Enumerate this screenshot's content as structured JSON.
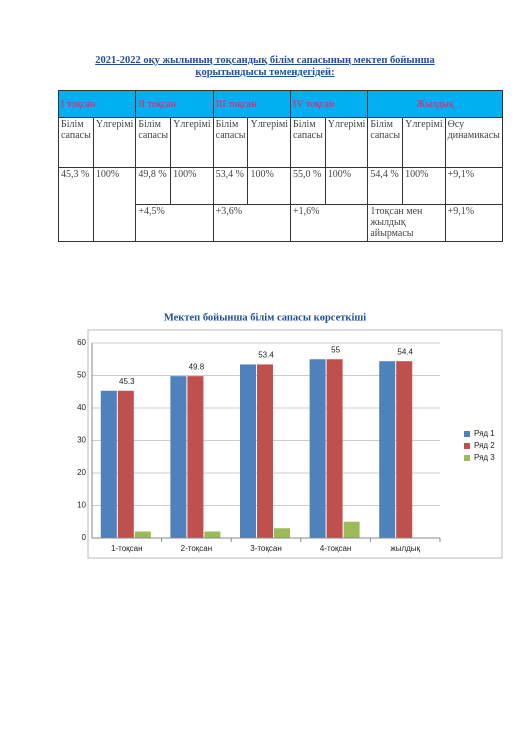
{
  "heading": "2021-2022 оқу жылының   тоқсандық   білім сапасының  мектеп бойынша қорытындысы  төмендегідей:",
  "table": {
    "header": [
      "I тоқсан",
      "II тоқсан",
      "III тоқсан",
      "IV тоқсан",
      "Жылдық"
    ],
    "subheader": [
      "Білім сапасы",
      "Үлгерімі",
      "Білім сапасы",
      "Үлгерімі",
      "Білім сапасы",
      "Үлгерімі",
      "Білім сапасы",
      "Үлгерімі",
      "Білім сапасы",
      "Үлгерімі",
      "Өсу динамикасы"
    ],
    "rows": [
      [
        "45,3 %",
        "100%",
        "49,8 %",
        "100%",
        "53,4 %",
        "100%",
        "55,0 %",
        "100%",
        "54,4 %",
        "100%",
        "+9,1%"
      ],
      [
        "+4,5%",
        "+3,6%",
        "+1,6%",
        "1тоқсан мен жылдық айырмасы",
        "+9,1%"
      ]
    ]
  },
  "chart_data": {
    "type": "bar",
    "title": "Мектеп бойынша білім сапасы көрсеткіші",
    "categories": [
      "1-тоқсан",
      "2-тоқсан",
      "3-тоқсан",
      "4-тоқсан",
      "жылдық"
    ],
    "series": [
      {
        "name": "Ряд 1",
        "color": "#4f81bd",
        "values": [
          45.3,
          49.8,
          53.4,
          55,
          54.4
        ]
      },
      {
        "name": "Ряд 2",
        "color": "#c0504d",
        "values": [
          45.3,
          49.8,
          53.4,
          55,
          54.4
        ]
      },
      {
        "name": "Ряд 3",
        "color": "#9bbb59",
        "values": [
          2,
          2,
          3,
          5,
          null
        ]
      }
    ],
    "ylim": [
      0,
      60
    ],
    "yticks": [
      0,
      10,
      20,
      30,
      40,
      50,
      60
    ],
    "grid": true,
    "legend": "right"
  }
}
